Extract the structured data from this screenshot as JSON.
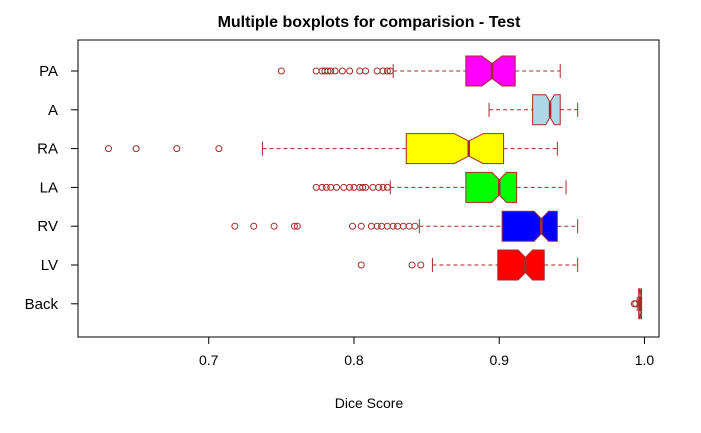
{
  "chart_data": {
    "type": "boxplot",
    "orientation": "horizontal",
    "notched": true,
    "title": "Multiple boxplots for comparision - Test",
    "xlabel": "Dice Score",
    "ylabel": "",
    "xlim": [
      0.61,
      1.01
    ],
    "xticks": [
      0.7,
      0.8,
      0.9,
      1.0
    ],
    "xtick_labels": [
      "0.7",
      "0.8",
      "0.9",
      "1.0"
    ],
    "grid": false,
    "legend": "none",
    "border_color": "#a52a2a",
    "categories": [
      "PA",
      "A",
      "RA",
      "LA",
      "RV",
      "LV",
      "Back"
    ],
    "series": [
      {
        "category": "PA",
        "color": "#ff00ff",
        "whisker_low": 0.827,
        "q1": 0.877,
        "median": 0.895,
        "q3": 0.911,
        "whisker_high": 0.942,
        "notch": [
          0.888,
          0.902
        ],
        "outliers": [
          0.75,
          0.774,
          0.778,
          0.78,
          0.782,
          0.784,
          0.787,
          0.792,
          0.797,
          0.804,
          0.808,
          0.816,
          0.82,
          0.823,
          0.825
        ]
      },
      {
        "category": "A",
        "color": "#add8e6",
        "whisker_low": 0.893,
        "q1": 0.923,
        "median": 0.935,
        "q3": 0.942,
        "whisker_high": 0.954,
        "notch": [
          0.932,
          0.938
        ],
        "outliers": []
      },
      {
        "category": "RA",
        "color": "#ffff00",
        "whisker_low": 0.737,
        "q1": 0.836,
        "median": 0.879,
        "q3": 0.903,
        "whisker_high": 0.94,
        "notch": [
          0.869,
          0.889
        ],
        "outliers": [
          0.631,
          0.65,
          0.678,
          0.707
        ]
      },
      {
        "category": "LA",
        "color": "#00ff00",
        "whisker_low": 0.825,
        "q1": 0.877,
        "median": 0.9,
        "q3": 0.912,
        "whisker_high": 0.946,
        "notch": [
          0.895,
          0.905
        ],
        "outliers": [
          0.774,
          0.778,
          0.781,
          0.784,
          0.788,
          0.793,
          0.797,
          0.8,
          0.804,
          0.806,
          0.808,
          0.813,
          0.817,
          0.82,
          0.823
        ]
      },
      {
        "category": "RV",
        "color": "#0000ff",
        "whisker_low": 0.845,
        "q1": 0.902,
        "median": 0.929,
        "q3": 0.94,
        "whisker_high": 0.954,
        "notch": [
          0.924,
          0.934
        ],
        "outliers": [
          0.718,
          0.731,
          0.745,
          0.759,
          0.761,
          0.799,
          0.805,
          0.812,
          0.816,
          0.819,
          0.823,
          0.827,
          0.83,
          0.834,
          0.838,
          0.842
        ]
      },
      {
        "category": "LV",
        "color": "#ff0000",
        "whisker_low": 0.854,
        "q1": 0.899,
        "median": 0.918,
        "q3": 0.931,
        "whisker_high": 0.954,
        "notch": [
          0.913,
          0.923
        ],
        "outliers": [
          0.805,
          0.84,
          0.846
        ]
      },
      {
        "category": "Back",
        "color": "#ffffff",
        "whisker_low": 0.995,
        "q1": 0.996,
        "median": 0.997,
        "q3": 0.998,
        "whisker_high": 0.998,
        "notch": [
          0.9965,
          0.9975
        ],
        "outliers": [
          0.993,
          0.994
        ]
      }
    ]
  }
}
